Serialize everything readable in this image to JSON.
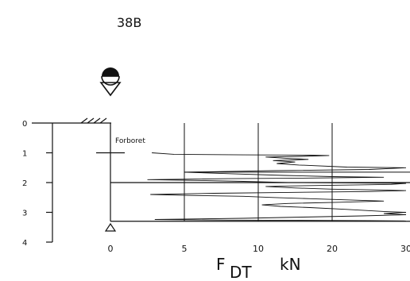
{
  "sounding_id": "38B",
  "annotation": "Forboret",
  "depth_axis": {
    "ticks": [
      {
        "value": 0,
        "label": "0"
      },
      {
        "value": 1,
        "label": "1"
      },
      {
        "value": 2,
        "label": "2"
      },
      {
        "value": 3,
        "label": "3"
      },
      {
        "value": 4,
        "label": "4"
      }
    ]
  },
  "force_axis": {
    "ticks": [
      {
        "value": 0,
        "label": "0"
      },
      {
        "value": 5,
        "label": "5"
      },
      {
        "value": 10,
        "label": "10"
      },
      {
        "value": 20,
        "label": "20"
      },
      {
        "value": 30,
        "label": "30"
      }
    ],
    "label_main": "F",
    "label_sub": "DT",
    "label_unit": "kN"
  },
  "markers": {
    "predrilled_to_depth": 1,
    "horizontal_reference_depths": [
      2,
      3.3
    ]
  },
  "chart_data": {
    "type": "line",
    "x_quantity": "F DT (kN)",
    "y_quantity": "depth",
    "x_ticks": [
      0,
      5,
      10,
      20,
      30
    ],
    "y_range": [
      0,
      4
    ],
    "series": [
      {
        "points": [
          [
            2.8,
            1.0
          ],
          [
            4.3,
            1.05
          ],
          [
            9.0,
            1.07
          ],
          [
            17.0,
            1.08
          ],
          [
            19.6,
            1.09
          ],
          [
            16.0,
            1.12
          ],
          [
            11.0,
            1.14
          ],
          [
            13.5,
            1.18
          ],
          [
            16.8,
            1.22
          ],
          [
            12.0,
            1.26
          ],
          [
            15.0,
            1.31
          ],
          [
            12.5,
            1.36
          ],
          [
            15.5,
            1.41
          ],
          [
            22.0,
            1.48
          ],
          [
            30.0,
            1.5
          ],
          [
            25.0,
            1.56
          ],
          [
            12.0,
            1.6
          ],
          [
            5.0,
            1.65
          ],
          [
            8.0,
            1.7
          ],
          [
            13.5,
            1.76
          ],
          [
            20.0,
            1.8
          ],
          [
            27.0,
            1.82
          ],
          [
            16.0,
            1.85
          ],
          [
            8.0,
            1.87
          ],
          [
            2.5,
            1.9
          ],
          [
            5.0,
            1.92
          ],
          [
            9.0,
            1.96
          ],
          [
            14.0,
            2.0
          ],
          [
            22.0,
            2.01
          ],
          [
            30.0,
            2.03
          ],
          [
            28.0,
            2.06
          ],
          [
            17.0,
            2.1
          ],
          [
            11.0,
            2.13
          ],
          [
            15.0,
            2.18
          ],
          [
            20.0,
            2.22
          ],
          [
            27.0,
            2.25
          ],
          [
            30.0,
            2.27
          ],
          [
            25.0,
            2.3
          ],
          [
            14.0,
            2.33
          ],
          [
            7.0,
            2.36
          ],
          [
            2.7,
            2.4
          ],
          [
            5.0,
            2.43
          ],
          [
            9.0,
            2.46
          ],
          [
            12.0,
            2.5
          ],
          [
            17.0,
            2.54
          ],
          [
            22.0,
            2.58
          ],
          [
            27.0,
            2.62
          ],
          [
            21.0,
            2.66
          ],
          [
            14.0,
            2.7
          ],
          [
            10.5,
            2.75
          ],
          [
            13.0,
            2.8
          ],
          [
            17.0,
            2.84
          ],
          [
            22.0,
            2.9
          ],
          [
            27.0,
            2.97
          ],
          [
            30.0,
            3.0
          ],
          [
            27.0,
            3.04
          ],
          [
            30.0,
            3.08
          ],
          [
            24.0,
            3.12
          ],
          [
            16.0,
            3.16
          ],
          [
            9.0,
            3.2
          ],
          [
            3.0,
            3.24
          ],
          [
            8.0,
            3.26
          ],
          [
            16.0,
            3.27
          ],
          [
            25.0,
            3.28
          ],
          [
            30.0,
            3.29
          ]
        ]
      }
    ]
  }
}
